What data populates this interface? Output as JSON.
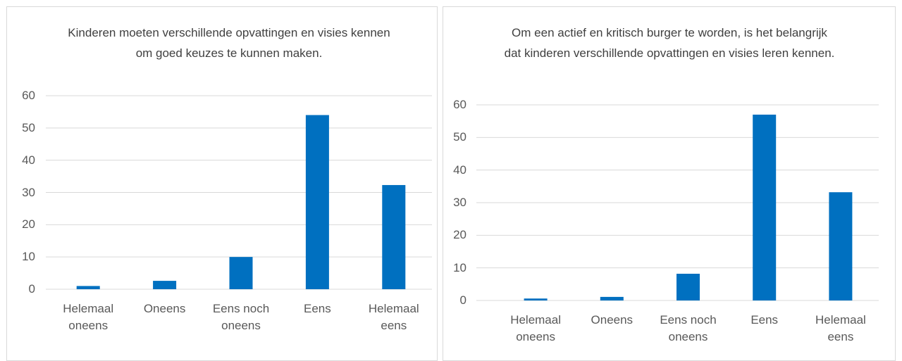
{
  "chart_data": [
    {
      "type": "bar",
      "title": "Kinderen moeten verschillende opvattingen en visies kennen om goed keuzes te kunnen maken.",
      "categories": [
        "Helemaal oneens",
        "Oneens",
        "Eens noch oneens",
        "Eens",
        "Helemaal eens"
      ],
      "values": [
        1,
        2.6,
        10,
        54,
        32.3
      ],
      "color": "#0070c0",
      "ylim": [
        0,
        60
      ],
      "yticks": [
        0,
        10,
        20,
        30,
        40,
        50,
        60
      ],
      "grid": true
    },
    {
      "type": "bar",
      "title": "Om een actief en kritisch burger te worden, is het belangrijk dat kinderen verschillende opvattingen en visies leren kennen.",
      "categories": [
        "Helemaal oneens",
        "Oneens",
        "Eens noch oneens",
        "Eens",
        "Helemaal eens"
      ],
      "values": [
        0.6,
        1.1,
        8.2,
        57,
        33.2
      ],
      "color": "#0070c0",
      "ylim": [
        0,
        60
      ],
      "yticks": [
        0,
        10,
        20,
        30,
        40,
        50,
        60
      ],
      "grid": true
    }
  ]
}
